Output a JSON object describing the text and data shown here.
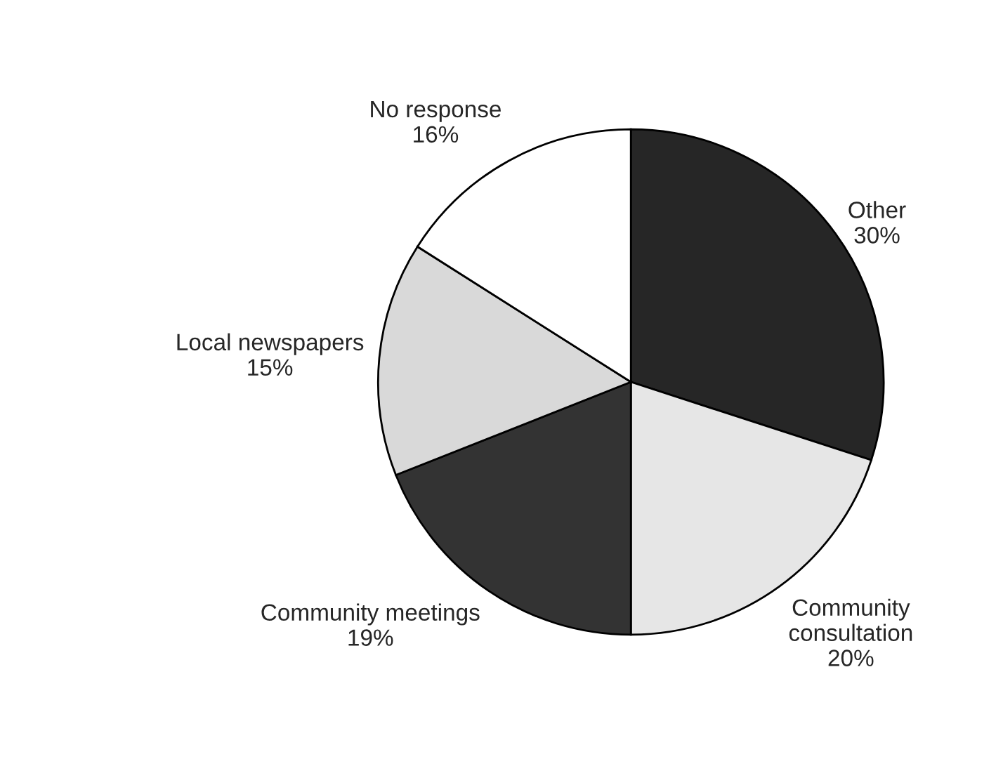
{
  "chart_data": {
    "type": "pie",
    "categories": [
      "Other",
      "Community\nconsultation",
      "Community meetings",
      "Local newspapers",
      "No response"
    ],
    "values": [
      30,
      20,
      19,
      15,
      16
    ],
    "value_labels": [
      "30%",
      "20%",
      "19%",
      "15%",
      "16%"
    ],
    "colors": [
      "#262626",
      "#e6e6e6",
      "#333333",
      "#d9d9d9",
      "#ffffff"
    ]
  }
}
